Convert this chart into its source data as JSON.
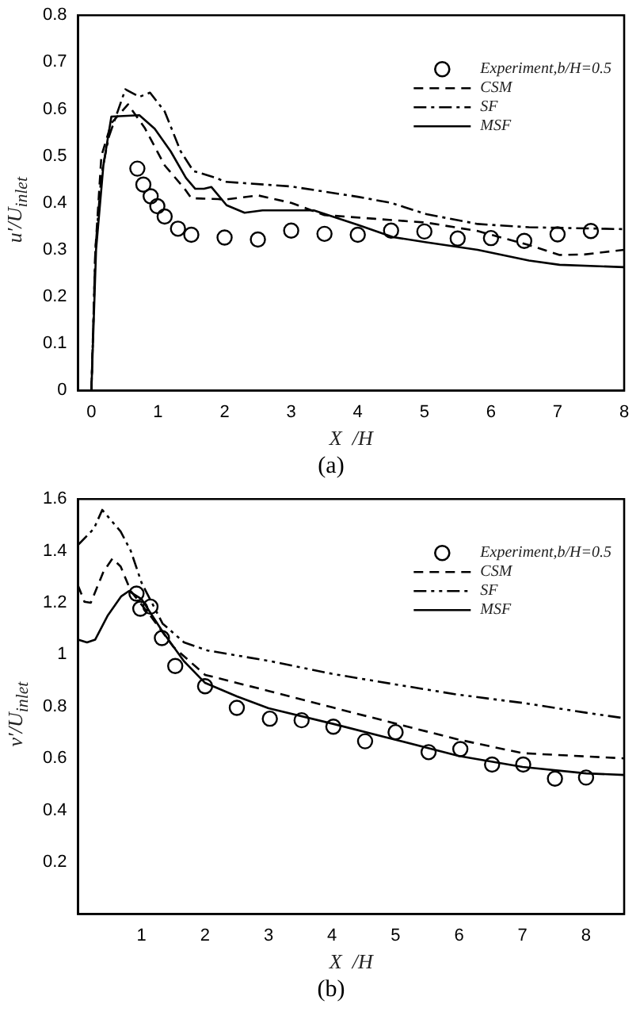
{
  "chart_data": [
    {
      "type": "line",
      "title": "(a)",
      "xlabel": "X  /H",
      "ylabel": "u′/U$_{inlet}$",
      "xlim": [
        -0.2,
        8
      ],
      "ylim": [
        0,
        0.8
      ],
      "xticks": [
        0,
        1,
        2,
        3,
        4,
        5,
        6,
        7,
        8
      ],
      "yticks": [
        0,
        0.1,
        0.2,
        0.3,
        0.4,
        0.5,
        0.6,
        0.7,
        0.8
      ],
      "grid": false,
      "legend": "top right",
      "series": [
        {
          "name": "Experiment,b/H=0.5",
          "type": "scatter",
          "marker": "circle",
          "color": "#000000",
          "x": [
            0.69,
            0.78,
            0.89,
            0.99,
            1.1,
            1.3,
            1.5,
            2.0,
            2.5,
            3.0,
            3.5,
            4.0,
            4.5,
            5.0,
            5.5,
            6.0,
            6.5,
            7.0,
            7.5
          ],
          "values": [
            0.473,
            0.439,
            0.414,
            0.393,
            0.371,
            0.345,
            0.332,
            0.326,
            0.322,
            0.341,
            0.334,
            0.332,
            0.341,
            0.339,
            0.324,
            0.325,
            0.319,
            0.333,
            0.34
          ]
        },
        {
          "name": "CSM",
          "type": "line",
          "line_style": "dashed",
          "color": "#000000",
          "x": [
            0,
            0.06,
            0.15,
            0.3,
            0.55,
            0.8,
            1.1,
            1.4,
            1.5,
            1.9,
            2.0,
            2.5,
            3.0,
            3.5,
            4.26,
            5.03,
            5.8,
            6.57,
            7.03,
            7.4,
            8
          ],
          "values": [
            0,
            0.3,
            0.5,
            0.57,
            0.61,
            0.56,
            0.48,
            0.43,
            0.41,
            0.408,
            0.407,
            0.416,
            0.4,
            0.374,
            0.366,
            0.358,
            0.34,
            0.31,
            0.289,
            0.29,
            0.3
          ]
        },
        {
          "name": "SF",
          "type": "line",
          "line_style": "dashdot",
          "color": "#000000",
          "x": [
            0,
            0.06,
            0.15,
            0.26,
            0.51,
            0.72,
            0.88,
            1.1,
            1.34,
            1.53,
            1.88,
            2.0,
            3.0,
            4.0,
            4.5,
            5.03,
            5.8,
            6.57,
            8
          ],
          "values": [
            0,
            0.3,
            0.46,
            0.54,
            0.642,
            0.626,
            0.635,
            0.595,
            0.51,
            0.468,
            0.453,
            0.445,
            0.435,
            0.413,
            0.4,
            0.376,
            0.355,
            0.348,
            0.344
          ]
        },
        {
          "name": "MSF",
          "type": "line",
          "line_style": "solid",
          "color": "#000000",
          "x": [
            0,
            0.07,
            0.18,
            0.3,
            0.72,
            0.95,
            1.19,
            1.42,
            1.56,
            1.69,
            1.8,
            2.03,
            2.3,
            2.57,
            3.0,
            3.34,
            4.0,
            4.53,
            5.03,
            5.8,
            6.57,
            7.03,
            8
          ],
          "values": [
            0,
            0.3,
            0.48,
            0.584,
            0.587,
            0.558,
            0.51,
            0.453,
            0.43,
            0.43,
            0.434,
            0.395,
            0.379,
            0.384,
            0.384,
            0.384,
            0.353,
            0.327,
            0.316,
            0.3,
            0.277,
            0.268,
            0.263
          ]
        }
      ]
    },
    {
      "type": "line",
      "title": "(b)",
      "xlabel": "X  /H",
      "ylabel": "v′/U$_{inlet}$",
      "xlim": [
        0,
        8.6
      ],
      "ylim": [
        0,
        1.6
      ],
      "xticks": [
        1,
        2,
        3,
        4,
        5,
        6,
        7,
        8
      ],
      "yticks": [
        0.2,
        0.4,
        0.6,
        0.8,
        1,
        1.2,
        1.4,
        1.6
      ],
      "grid": false,
      "legend": "top right",
      "series": [
        {
          "name": "Experiment,b/H=0.5",
          "type": "scatter",
          "marker": "circle",
          "color": "#000000",
          "x": [
            0.92,
            0.98,
            1.14,
            1.32,
            1.53,
            2.0,
            2.5,
            3.02,
            3.52,
            4.02,
            4.52,
            5.0,
            5.52,
            6.02,
            6.52,
            7.01,
            7.51,
            8.0
          ],
          "values": [
            1.235,
            1.177,
            1.185,
            1.064,
            0.956,
            0.878,
            0.795,
            0.753,
            0.747,
            0.722,
            0.666,
            0.701,
            0.624,
            0.636,
            0.576,
            0.576,
            0.522,
            0.526
          ]
        },
        {
          "name": "CSM",
          "type": "line",
          "line_style": "dashed",
          "color": "#000000",
          "x": [
            0,
            0.1,
            0.2,
            0.4,
            0.54,
            0.67,
            0.83,
            1.17,
            1.5,
            2.0,
            3.0,
            4.0,
            5.0,
            6.0,
            7.0,
            8.6
          ],
          "values": [
            1.266,
            1.204,
            1.2,
            1.32,
            1.37,
            1.34,
            1.245,
            1.14,
            1.03,
            0.922,
            0.86,
            0.797,
            0.734,
            0.672,
            0.62,
            0.6
          ]
        },
        {
          "name": "SF",
          "type": "line",
          "line_style": "dashdotdot",
          "color": "#000000",
          "x": [
            0,
            0.25,
            0.38,
            0.67,
            0.83,
            1.0,
            1.33,
            1.67,
            2.04,
            3.0,
            4.0,
            5.0,
            6.0,
            7.0,
            8.0,
            8.6
          ],
          "values": [
            1.423,
            1.486,
            1.558,
            1.475,
            1.4,
            1.277,
            1.12,
            1.047,
            1.016,
            0.976,
            0.926,
            0.885,
            0.845,
            0.814,
            0.776,
            0.755
          ]
        },
        {
          "name": "MSF",
          "type": "line",
          "line_style": "solid",
          "color": "#000000",
          "x": [
            0,
            0.14,
            0.27,
            0.47,
            0.68,
            0.8,
            1.0,
            1.33,
            1.67,
            2.0,
            2.5,
            3.0,
            4.0,
            5.0,
            6.0,
            7.0,
            8.0,
            8.6
          ],
          "values": [
            1.058,
            1.047,
            1.058,
            1.152,
            1.225,
            1.245,
            1.214,
            1.089,
            0.974,
            0.891,
            0.839,
            0.793,
            0.734,
            0.672,
            0.609,
            0.567,
            0.542,
            0.536
          ]
        }
      ]
    }
  ]
}
